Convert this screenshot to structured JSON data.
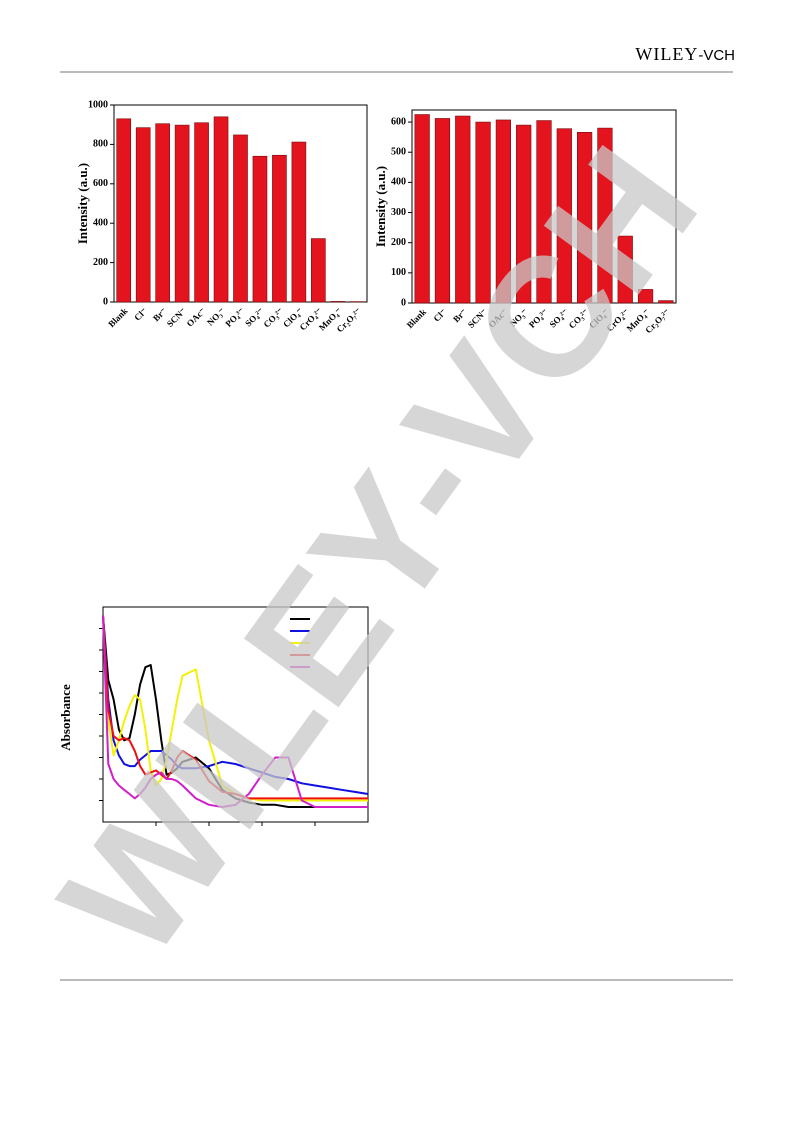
{
  "header": {
    "logo_main": "WILEY",
    "logo_suffix": "-VCH"
  },
  "watermark": "WILEY-VCH",
  "chart_data": [
    {
      "type": "bar",
      "y_label": "Intensity (a.u.)",
      "color": "#e3141d",
      "categories": [
        "Blank",
        "Cl⁻",
        "Br⁻",
        "SCN⁻",
        "OAc⁻",
        "NO₃⁻",
        "PO₄³⁻",
        "SO₄²⁻",
        "CO₃²⁻",
        "ClO₄⁻",
        "CrO₄²⁻",
        "MnO₄⁻",
        "Cr₂O₇²⁻"
      ],
      "values": [
        930,
        885,
        905,
        898,
        910,
        940,
        848,
        740,
        745,
        812,
        322,
        3,
        2
      ],
      "ylim": [
        0,
        1000
      ],
      "yticks": [
        0,
        200,
        400,
        600,
        800,
        1000
      ]
    },
    {
      "type": "bar",
      "y_label": "Intensity (a.u.)",
      "color": "#e3141d",
      "categories": [
        "Blank",
        "Cl⁻",
        "Br⁻",
        "SCN⁻",
        "OAc⁻",
        "NO₃⁻",
        "PO₄³⁻",
        "SO₄²⁻",
        "CO₃²⁻",
        "ClO₄⁻",
        "CrO₄²⁻",
        "MnO₄⁻",
        "Cr₂O₇²⁻"
      ],
      "values": [
        625,
        612,
        620,
        600,
        607,
        590,
        605,
        578,
        566,
        580,
        222,
        45,
        8
      ],
      "ylim": [
        0,
        640
      ],
      "yticks": [
        0,
        100,
        200,
        300,
        400,
        500,
        600
      ]
    },
    {
      "type": "line",
      "y_label": "Absorbance",
      "xlim": [
        0,
        100
      ],
      "ylim": [
        0,
        100
      ],
      "x": [
        0,
        2,
        4,
        6,
        8,
        10,
        12,
        14,
        16,
        18,
        20,
        22,
        24,
        26,
        28,
        30,
        35,
        40,
        45,
        50,
        55,
        60,
        65,
        70,
        75,
        80,
        85,
        90,
        95,
        100
      ],
      "series": [
        {
          "color": "#000000",
          "values": [
            96,
            66,
            57,
            43,
            38,
            39,
            50,
            64,
            72,
            73,
            57,
            38,
            22,
            23,
            25,
            28,
            30,
            25,
            15,
            11,
            9,
            8,
            8,
            7,
            7,
            7,
            7,
            7,
            7,
            7
          ]
        },
        {
          "color": "#1010e0",
          "values": [
            96,
            57,
            38,
            31,
            27,
            26,
            26,
            29,
            31,
            33,
            33,
            33,
            31,
            29,
            26,
            25,
            25,
            26,
            28,
            27,
            25,
            23,
            21,
            20,
            18,
            17,
            16,
            15,
            14,
            13
          ]
        },
        {
          "color": "#f5f00a",
          "values": [
            96,
            47,
            31,
            38,
            47,
            54,
            59,
            57,
            43,
            24,
            17,
            20,
            29,
            43,
            57,
            68,
            71,
            38,
            17,
            13,
            11,
            10,
            10,
            10,
            10,
            10,
            10,
            10,
            10,
            10
          ]
        },
        {
          "color": "#f01010",
          "values": [
            96,
            52,
            40,
            38,
            39,
            38,
            33,
            26,
            22,
            23,
            24,
            22,
            20,
            24,
            30,
            33,
            29,
            19,
            14,
            13,
            11,
            11,
            11,
            11,
            11,
            11,
            11,
            11,
            11,
            11
          ]
        },
        {
          "color": "#d020c8",
          "values": [
            96,
            27,
            20,
            17,
            15,
            13,
            11,
            13,
            16,
            20,
            22,
            23,
            20,
            20,
            19,
            17,
            11,
            8,
            7,
            8,
            13,
            22,
            30,
            30,
            10,
            7,
            7,
            7,
            7,
            7
          ]
        }
      ]
    }
  ]
}
